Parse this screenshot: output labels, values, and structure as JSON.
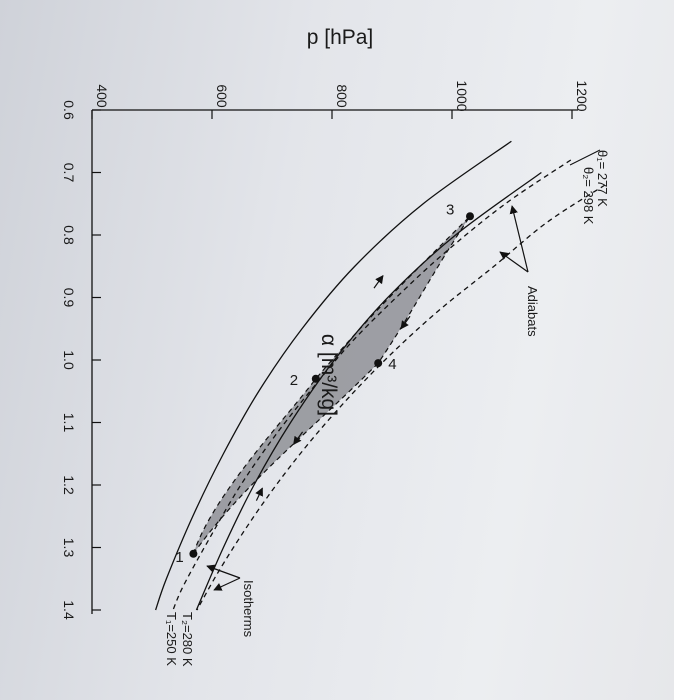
{
  "chart_data": {
    "type": "line",
    "title": "",
    "xlabel": "p [hPa]",
    "ylabel": "α [m³/kg]",
    "p_ticks": [
      "400",
      "600",
      "800",
      "1000",
      "1200"
    ],
    "alpha_ticks": [
      "0.6",
      "0.7",
      "0.8",
      "0.9",
      "1.0",
      "1.1",
      "1.2",
      "1.3",
      "1.4"
    ],
    "p_range": [
      400,
      1200
    ],
    "alpha_range": [
      0.6,
      1.4
    ],
    "grid": false,
    "series": [
      {
        "name": "T1=250 K",
        "style": "solid",
        "points": [
          [
            1099,
            0.65
          ],
          [
            952,
            0.75
          ],
          [
            838,
            0.85
          ],
          [
            750,
            0.95
          ],
          [
            678,
            1.05
          ],
          [
            619,
            1.15
          ],
          [
            568,
            1.25
          ],
          [
            524,
            1.35
          ],
          [
            506,
            1.4
          ]
        ]
      },
      {
        "name": "T2=280 K",
        "style": "solid",
        "points": [
          [
            1149,
            0.7
          ],
          [
            1006,
            0.8
          ],
          [
            893,
            0.9
          ],
          [
            804,
            1.0
          ],
          [
            731,
            1.1
          ],
          [
            670,
            1.2
          ],
          [
            619,
            1.3
          ],
          [
            574,
            1.4
          ]
        ]
      },
      {
        "name": "θ1=277 K",
        "style": "dashed",
        "points": [
          [
            1198,
            0.68
          ],
          [
            1089,
            0.75
          ],
          [
            986,
            0.83
          ],
          [
            907,
            0.9
          ],
          [
            834,
            0.97
          ],
          [
            772,
            1.04
          ],
          [
            706,
            1.12
          ],
          [
            648,
            1.2
          ],
          [
            599,
            1.28
          ],
          [
            553,
            1.36
          ],
          [
            535,
            1.4
          ]
        ]
      },
      {
        "name": "θ2=298 K",
        "style": "dashed",
        "points": [
          [
            1255,
            0.72
          ],
          [
            1158,
            0.78
          ],
          [
            1070,
            0.85
          ],
          [
            979,
            0.92
          ],
          [
            899,
            0.99
          ],
          [
            828,
            1.06
          ],
          [
            764,
            1.13
          ],
          [
            707,
            1.2
          ],
          [
            656,
            1.27
          ],
          [
            610,
            1.34
          ],
          [
            575,
            1.4
          ]
        ]
      }
    ],
    "cycle_points": [
      {
        "label": "1",
        "p": 569,
        "alpha": 1.31
      },
      {
        "label": "2",
        "p": 773,
        "alpha": 1.03
      },
      {
        "label": "3",
        "p": 1030,
        "alpha": 0.77
      },
      {
        "label": "4",
        "p": 877,
        "alpha": 1.005
      }
    ],
    "annotations": {
      "theta1": "θ₁= 277 K",
      "theta2": "θ₂= 298 K",
      "adiabats": "Adiabats",
      "isotherms": "Isotherms",
      "t2": "T₂=280 K",
      "t1": "T₁=250 K"
    }
  }
}
